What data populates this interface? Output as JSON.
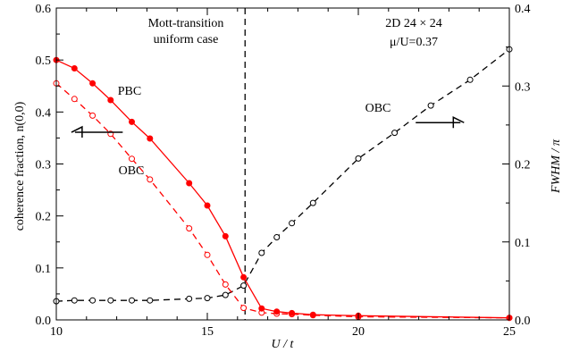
{
  "chart_data": {
    "type": "line",
    "title": "",
    "xlabel": "U / t",
    "ylabel_left": "coherence fraction, n(0,0)",
    "ylabel_right": "FWHM / π",
    "xlim": [
      10,
      25
    ],
    "ylim_left": [
      0,
      0.6
    ],
    "ylim_right": [
      0,
      0.4
    ],
    "x_ticks": [
      10,
      15,
      20,
      25
    ],
    "y_ticks_left": [
      0.0,
      0.1,
      0.2,
      0.3,
      0.4,
      0.5,
      0.6
    ],
    "y_ticks_right": [
      0.0,
      0.1,
      0.2,
      0.3,
      0.4
    ],
    "x_tick_labels": [
      "10",
      "15",
      "20",
      "25"
    ],
    "y_tick_labels_left": [
      "0.0",
      "0.1",
      "0.2",
      "0.3",
      "0.4",
      "0.5",
      "0.6"
    ],
    "y_tick_labels_right": [
      "0.0",
      "0.1",
      "0.2",
      "0.3",
      "0.4"
    ],
    "grid": false,
    "vline": {
      "x": 16.25,
      "label_line1": "Mott-transition",
      "label_line2": "uniform case"
    },
    "system_label_line1": "2D 24 × 24",
    "system_label_line2": "μ/U=0.37",
    "series": [
      {
        "name": "PBC",
        "axis": "left",
        "color": "#ff0000",
        "line": "solid",
        "marker": "filled-circle",
        "x": [
          10.0,
          10.6,
          11.2,
          11.8,
          12.5,
          13.1,
          14.4,
          15.0,
          15.6,
          16.2,
          16.8,
          17.3,
          17.8,
          18.5,
          20.0,
          25.0
        ],
        "y": [
          0.5,
          0.484,
          0.455,
          0.423,
          0.381,
          0.349,
          0.263,
          0.22,
          0.161,
          0.082,
          0.022,
          0.016,
          0.013,
          0.01,
          0.008,
          0.004
        ]
      },
      {
        "name": "OBC",
        "axis": "left",
        "color": "#ff0000",
        "line": "dashed",
        "marker": "open-circle",
        "x": [
          10.0,
          10.6,
          11.2,
          11.8,
          12.5,
          13.1,
          14.4,
          15.0,
          15.6,
          16.2,
          16.8,
          17.3,
          17.8,
          18.5,
          20.0,
          25.0
        ],
        "y": [
          0.455,
          0.425,
          0.393,
          0.358,
          0.31,
          0.27,
          0.176,
          0.125,
          0.068,
          0.023,
          0.014,
          0.012,
          0.011,
          0.009,
          0.006,
          0.004
        ]
      },
      {
        "name": "OBC",
        "axis": "right",
        "color": "#000000",
        "line": "dashed",
        "marker": "open-circle",
        "x": [
          10.0,
          10.6,
          11.2,
          11.8,
          12.5,
          13.1,
          14.4,
          15.0,
          15.6,
          16.2,
          16.8,
          17.3,
          17.8,
          18.5,
          20.0,
          21.2,
          22.4,
          23.7,
          25.0
        ],
        "y": [
          0.024,
          0.025,
          0.025,
          0.025,
          0.025,
          0.025,
          0.027,
          0.028,
          0.032,
          0.044,
          0.086,
          0.106,
          0.124,
          0.15,
          0.207,
          0.24,
          0.275,
          0.308,
          0.347
        ]
      }
    ],
    "annotations": [
      {
        "text": "PBC",
        "x": 12.6,
        "y_left": 0.437
      },
      {
        "text": "OBC",
        "x": 12.7,
        "y_left": 0.283
      },
      {
        "text": "OBC",
        "x": 21.4,
        "y_right": 0.28
      }
    ],
    "arrows": [
      {
        "direction": "left",
        "x_from": 12.2,
        "x_to": 10.5,
        "y_left": 0.361
      },
      {
        "direction": "right",
        "x_from": 21.9,
        "x_to": 23.5,
        "y_right": 0.253
      }
    ]
  }
}
